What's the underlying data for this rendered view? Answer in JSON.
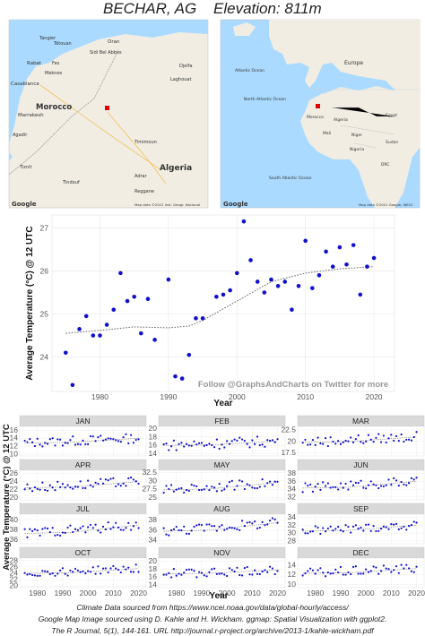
{
  "header": {
    "title": "BECHAR, AG",
    "elevation": "Elevation: 811m"
  },
  "maps": {
    "left": {
      "labels": [
        "Tangier",
        "Tétouan",
        "Oran",
        "Fes",
        "Rabat",
        "Casablanca",
        "Meknes",
        "Morocco",
        "Marrakesh",
        "Agadir",
        "Tiznit",
        "Tindouf",
        "Algeria",
        "Timimoun",
        "Adrar",
        "Reggane",
        "Djelfa",
        "Laghouat",
        "Sidi Bel Abbès"
      ],
      "attribution": "Map data ©2021 Inst. Geogr. Nacional",
      "logo": "Google",
      "colors": {
        "land": "#f1ede3",
        "water": "#aadaff",
        "marker": "#e00000"
      }
    },
    "right": {
      "labels": [
        "Atlantic Ocean",
        "North Atlantic Ocean",
        "Europe",
        "Morocco",
        "Algeria",
        "Mali",
        "Niger",
        "Sudan",
        "Egypt",
        "Nigeria",
        "DRC",
        "South Atlantic Ocean"
      ],
      "attribution": "Map data ©2021 Google, INEGI",
      "logo": "Google",
      "colors": {
        "land": "#f1ede3",
        "water": "#aadaff",
        "marker": "#e00000"
      }
    }
  },
  "main_chart": {
    "watermark": "Follow @GraphsAndCharts on Twitter for more"
  },
  "monthly": {
    "ylabel": "Average Temperature (°C) @ 12 UTC",
    "xlabel": "Year"
  },
  "footer": {
    "line1": "Climate Data sourced from https://www.ncei.noaa.gov/data/global-hourly/access/",
    "line2": "Google Map Image sourced using D. Kahle and H. Wickham. ggmap: Spatial Visualization with ggplot2.",
    "line3": "The R Journal, 5(1), 144-161. URL http://journal.r-project.org/archive/2013-1/kahle-wickham.pdf"
  },
  "chart_data": [
    {
      "type": "scatter",
      "title": "",
      "xlabel": "Year",
      "ylabel": "Average Temperature (°C) @ 12 UTC",
      "xlim": [
        1973,
        2023
      ],
      "ylim": [
        23.2,
        27.3
      ],
      "xticks": [
        1980,
        1990,
        2000,
        2010,
        2020
      ],
      "yticks": [
        24,
        25,
        26,
        27
      ],
      "grid": true,
      "x": [
        1975,
        1976,
        1977,
        1978,
        1979,
        1980,
        1981,
        1982,
        1983,
        1984,
        1985,
        1986,
        1987,
        1988,
        1990,
        1991,
        1992,
        1993,
        1994,
        1995,
        1997,
        1998,
        1999,
        2000,
        2001,
        2002,
        2003,
        2004,
        2005,
        2006,
        2007,
        2008,
        2009,
        2010,
        2011,
        2012,
        2013,
        2014,
        2015,
        2016,
        2017,
        2018,
        2019,
        2020
      ],
      "y": [
        24.1,
        23.35,
        24.65,
        24.95,
        24.5,
        24.5,
        24.75,
        25.1,
        25.95,
        25.3,
        25.4,
        24.55,
        25.35,
        24.4,
        25.8,
        23.55,
        23.5,
        24.05,
        24.9,
        24.9,
        25.4,
        25.45,
        25.55,
        25.95,
        27.15,
        26.25,
        25.75,
        25.5,
        25.8,
        25.65,
        25.75,
        25.1,
        25.65,
        26.7,
        25.6,
        25.9,
        26.45,
        26.1,
        26.55,
        26.15,
        26.6,
        25.45,
        26.1,
        26.3
      ],
      "trend": {
        "x": [
          1975,
          1980,
          1985,
          1990,
          1993,
          1995,
          2000,
          2005,
          2010,
          2015,
          2020
        ],
        "y": [
          24.55,
          24.62,
          24.7,
          24.68,
          24.72,
          24.85,
          25.3,
          25.75,
          25.95,
          26.05,
          26.1
        ]
      }
    },
    {
      "type": "scatter",
      "panel_grid": "3 columns x 4 rows",
      "xlim": [
        1973,
        2023
      ],
      "xticks": [
        1980,
        1990,
        2000,
        2010,
        2020
      ],
      "panels": [
        {
          "name": "JAN",
          "yticks": [
            10,
            12,
            14,
            16
          ],
          "ylim": [
            9.5,
            17
          ],
          "base": 12.8,
          "trend_end": 14.0,
          "amp": 1.2
        },
        {
          "name": "FEB",
          "yticks": [
            14,
            16,
            18,
            20
          ],
          "ylim": [
            13.5,
            20.5
          ],
          "base": 16.0,
          "trend_end": 17.0,
          "amp": 1.3
        },
        {
          "name": "MAR",
          "yticks": [
            17.5,
            20.0,
            22.5
          ],
          "ylim": [
            16.8,
            23.3
          ],
          "base": 19.8,
          "trend_end": 21.0,
          "amp": 1.1
        },
        {
          "name": "APR",
          "yticks": [
            20,
            22,
            24,
            26
          ],
          "ylim": [
            19.5,
            26.8
          ],
          "base": 22.5,
          "trend_end": 24.0,
          "amp": 1.2
        },
        {
          "name": "MAY",
          "yticks": [
            25.0,
            27.5,
            30.0,
            32.5
          ],
          "ylim": [
            24.3,
            33.2
          ],
          "base": 27.3,
          "trend_end": 29.5,
          "amp": 1.4
        },
        {
          "name": "JUN",
          "yticks": [
            32,
            34,
            36,
            38
          ],
          "ylim": [
            31.3,
            38.8
          ],
          "base": 34.3,
          "trend_end": 36.0,
          "amp": 1.2
        },
        {
          "name": "JUL",
          "yticks": [
            36,
            38,
            40
          ],
          "ylim": [
            35.2,
            41.2
          ],
          "base": 37.3,
          "trend_end": 39.0,
          "amp": 1.0
        },
        {
          "name": "AUG",
          "yticks": [
            34,
            36,
            38
          ],
          "ylim": [
            33.3,
            39.2
          ],
          "base": 35.8,
          "trend_end": 37.5,
          "amp": 1.0
        },
        {
          "name": "SEP",
          "yticks": [
            28,
            30,
            32,
            34
          ],
          "ylim": [
            27.3,
            34.8
          ],
          "base": 30.5,
          "trend_end": 32.0,
          "amp": 1.1
        },
        {
          "name": "OCT",
          "yticks": [
            20,
            22,
            24,
            26,
            28
          ],
          "ylim": [
            19.5,
            28.8
          ],
          "base": 24.0,
          "trend_end": 25.5,
          "amp": 1.3
        },
        {
          "name": "NOV",
          "yticks": [
            14,
            16,
            18,
            20
          ],
          "ylim": [
            13.3,
            20.8
          ],
          "base": 16.8,
          "trend_end": 17.8,
          "amp": 1.2
        },
        {
          "name": "DEC",
          "yticks": [
            10,
            12,
            14
          ],
          "ylim": [
            9.3,
            15.5
          ],
          "base": 12.3,
          "trend_end": 13.3,
          "amp": 1.0
        }
      ]
    }
  ]
}
